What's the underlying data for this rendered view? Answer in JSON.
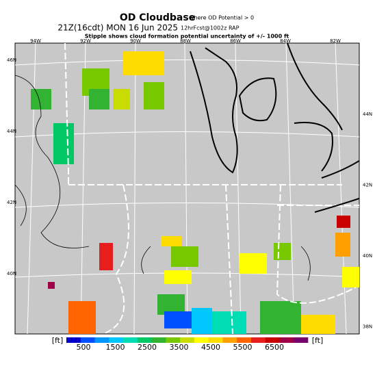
{
  "header": {
    "title": "OD Cloudbase",
    "title_note": "where OD Potential > 0",
    "line2": "21Z(16cdt) MON 16 Jun 2025",
    "line2_note": "12hrFcst@1002z RAP",
    "line3": "Stipple shows cloud formation potential uncertainty of +/- 1000 ft"
  },
  "map": {
    "top_labels": [
      "94W",
      "92W",
      "90W",
      "88W",
      "86W",
      "84W",
      "82W"
    ],
    "left_labels": [
      "46N",
      "44N",
      "42N",
      "40N"
    ],
    "right_labels": [
      "44N",
      "42N",
      "40N",
      "38N"
    ]
  },
  "colorbar": {
    "unit_left": "[ft]",
    "unit_right": "[ft]",
    "labels": [
      "500",
      "1500",
      "2500",
      "3500",
      "4500",
      "5500",
      "6500"
    ],
    "colors": [
      "#0000c8",
      "#0050ff",
      "#0096ff",
      "#00c8ff",
      "#00dcb4",
      "#00c864",
      "#32b432",
      "#78c800",
      "#c8dc00",
      "#ffff00",
      "#ffdc00",
      "#ffa000",
      "#ff6400",
      "#e61e1e",
      "#c80000",
      "#a00046",
      "#78006e"
    ]
  }
}
